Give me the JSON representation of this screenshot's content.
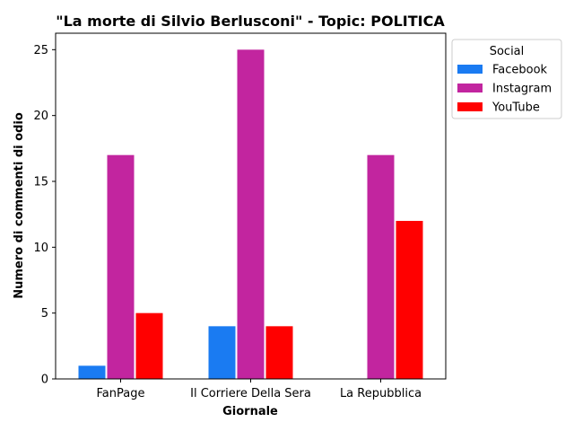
{
  "chart_data": {
    "type": "bar",
    "title": "\"La morte di Silvio Berlusconi\" - Topic: POLITICA",
    "xlabel": "Giornale",
    "ylabel": "Numero di commenti di odio",
    "categories": [
      "FanPage",
      "Il Corriere Della Sera",
      "La Repubblica"
    ],
    "ylim": [
      0,
      26.25
    ],
    "yticks": [
      0,
      5,
      10,
      15,
      20,
      25
    ],
    "grid": false,
    "legend": {
      "title": "Social",
      "placement": "outside-top-right"
    },
    "series": [
      {
        "name": "Facebook",
        "color": "#1a7bf2",
        "values": [
          1,
          4,
          0
        ]
      },
      {
        "name": "Instagram",
        "color": "#c2259f",
        "values": [
          17,
          25,
          17
        ]
      },
      {
        "name": "YouTube",
        "color": "#ff0000",
        "values": [
          5,
          4,
          12
        ]
      }
    ]
  }
}
